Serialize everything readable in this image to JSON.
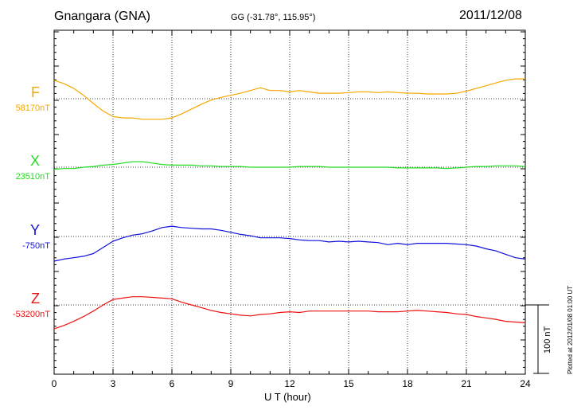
{
  "header": {
    "station": "Gnangara (GNA)",
    "coords": "GG (-31.78°, 115.95°)",
    "date": "2011/12/08"
  },
  "footer": {
    "plotted": "Plotted at 2012/01/08 01:00 UT",
    "scale_label": "100 nT"
  },
  "chart_data": {
    "type": "line",
    "xlabel": "U T (hour)",
    "xlim": [
      0,
      24
    ],
    "xticks": [
      "0",
      "3",
      "6",
      "9",
      "12",
      "15",
      "18",
      "21",
      "24"
    ],
    "grid": true,
    "scale_bar_nT": 100,
    "series": [
      {
        "name": "F",
        "baseline_label": "58170nT",
        "baseline": 58170,
        "color": "#f5a800",
        "x": [
          0,
          0.5,
          1,
          1.5,
          2,
          2.5,
          3,
          3.5,
          4,
          4.5,
          5,
          5.5,
          6,
          6.5,
          7,
          7.5,
          8,
          8.5,
          9,
          9.5,
          10,
          10.5,
          11,
          11.5,
          12,
          12.5,
          13,
          13.5,
          14,
          14.5,
          15,
          15.5,
          16,
          16.5,
          17,
          17.5,
          18,
          18.5,
          19,
          19.5,
          20,
          20.5,
          21,
          21.5,
          22,
          22.5,
          23,
          23.5,
          24
        ],
        "values": [
          58197,
          58192,
          58185,
          58175,
          58163,
          58152,
          58144,
          58142,
          58142,
          58140,
          58140,
          58140,
          58142,
          58148,
          58155,
          58162,
          58168,
          58172,
          58175,
          58178,
          58182,
          58186,
          58182,
          58182,
          58180,
          58182,
          58180,
          58178,
          58178,
          58178,
          58179,
          58180,
          58180,
          58179,
          58180,
          58179,
          58178,
          58178,
          58177,
          58177,
          58177,
          58178,
          58181,
          58185,
          58189,
          58193,
          58197,
          58199,
          58199
        ]
      },
      {
        "name": "X",
        "baseline_label": "23510nT",
        "baseline": 23510,
        "color": "#22dd22",
        "x": [
          0,
          0.5,
          1,
          1.5,
          2,
          2.5,
          3,
          3.5,
          4,
          4.5,
          5,
          5.5,
          6,
          6.5,
          7,
          7.5,
          8,
          8.5,
          9,
          9.5,
          10,
          10.5,
          11,
          11.5,
          12,
          12.5,
          13,
          13.5,
          14,
          14.5,
          15,
          15.5,
          16,
          16.5,
          17,
          17.5,
          18,
          18.5,
          19,
          19.5,
          20,
          20.5,
          21,
          21.5,
          22,
          22.5,
          23,
          23.5,
          24
        ],
        "values": [
          23507,
          23508,
          23508,
          23510,
          23511,
          23513,
          23514,
          23516,
          23518,
          23518,
          23516,
          23514,
          23513,
          23513,
          23513,
          23512,
          23512,
          23511,
          23511,
          23511,
          23510,
          23510,
          23510,
          23510,
          23510,
          23511,
          23511,
          23511,
          23510,
          23510,
          23510,
          23510,
          23510,
          23510,
          23510,
          23509,
          23509,
          23509,
          23509,
          23509,
          23508,
          23509,
          23510,
          23511,
          23511,
          23512,
          23512,
          23512,
          23511
        ]
      },
      {
        "name": "Y",
        "baseline_label": "-750nT",
        "baseline": -750,
        "color": "#1010dd",
        "x": [
          0,
          0.5,
          1,
          1.5,
          2,
          2.5,
          3,
          3.5,
          4,
          4.5,
          5,
          5.5,
          6,
          6.5,
          7,
          7.5,
          8,
          8.5,
          9,
          9.5,
          10,
          10.5,
          11,
          11.5,
          12,
          12.5,
          13,
          13.5,
          14,
          14.5,
          15,
          15.5,
          16,
          16.5,
          17,
          17.5,
          18,
          18.5,
          19,
          19.5,
          20,
          20.5,
          21,
          21.5,
          22,
          22.5,
          23,
          23.5,
          24
        ],
        "values": [
          -786,
          -783,
          -781,
          -779,
          -775,
          -766,
          -757,
          -752,
          -748,
          -746,
          -742,
          -737,
          -735,
          -737,
          -738,
          -739,
          -739,
          -741,
          -744,
          -747,
          -749,
          -752,
          -752,
          -752,
          -753,
          -755,
          -756,
          -756,
          -758,
          -757,
          -758,
          -757,
          -758,
          -759,
          -762,
          -760,
          -762,
          -760,
          -760,
          -760,
          -760,
          -761,
          -762,
          -764,
          -768,
          -771,
          -776,
          -781,
          -783
        ]
      },
      {
        "name": "Z",
        "baseline_label": "-53200nT",
        "baseline": -53200,
        "color": "#ee1111",
        "x": [
          0,
          0.5,
          1,
          1.5,
          2,
          2.5,
          3,
          3.5,
          4,
          4.5,
          5,
          5.5,
          6,
          6.5,
          7,
          7.5,
          8,
          8.5,
          9,
          9.5,
          10,
          10.5,
          11,
          11.5,
          12,
          12.5,
          13,
          13.5,
          14,
          14.5,
          15,
          15.5,
          16,
          16.5,
          17,
          17.5,
          18,
          18.5,
          19,
          19.5,
          20,
          20.5,
          21,
          21.5,
          22,
          22.5,
          23,
          23.5,
          24
        ],
        "values": [
          -53235,
          -53230,
          -53224,
          -53217,
          -53209,
          -53200,
          -53192,
          -53190,
          -53188,
          -53188,
          -53189,
          -53190,
          -53191,
          -53196,
          -53200,
          -53204,
          -53208,
          -53211,
          -53213,
          -53215,
          -53216,
          -53214,
          -53213,
          -53211,
          -53210,
          -53211,
          -53209,
          -53209,
          -53209,
          -53209,
          -53209,
          -53209,
          -53209,
          -53210,
          -53210,
          -53210,
          -53209,
          -53208,
          -53209,
          -53210,
          -53211,
          -53213,
          -53214,
          -53217,
          -53219,
          -53221,
          -53224,
          -53225,
          -53226
        ]
      }
    ]
  }
}
